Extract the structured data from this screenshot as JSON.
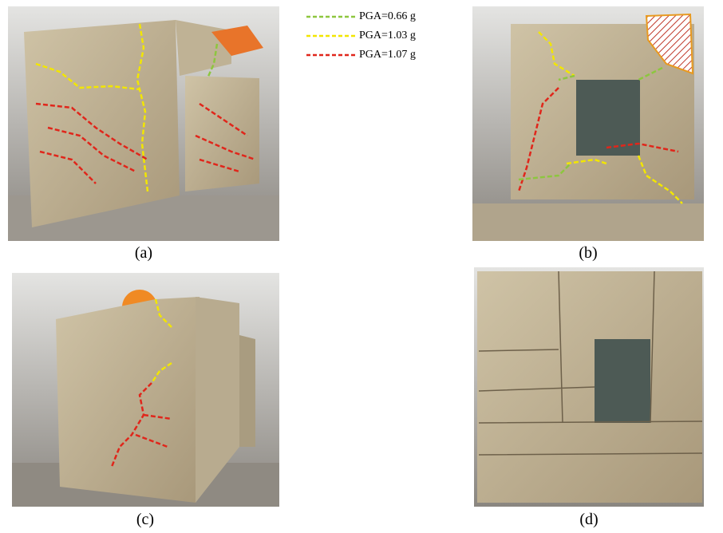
{
  "legend": {
    "items": [
      {
        "label": "PGA=0.66 g",
        "color": "#8dc63f"
      },
      {
        "label": "PGA=1.03 g",
        "color": "#f2e600"
      },
      {
        "label": "PGA=1.07 g",
        "color": "#e0261b"
      }
    ]
  },
  "panels": [
    {
      "caption": "(a)"
    },
    {
      "caption": "(b)"
    },
    {
      "caption": "(c)"
    },
    {
      "caption": "(d)"
    }
  ]
}
